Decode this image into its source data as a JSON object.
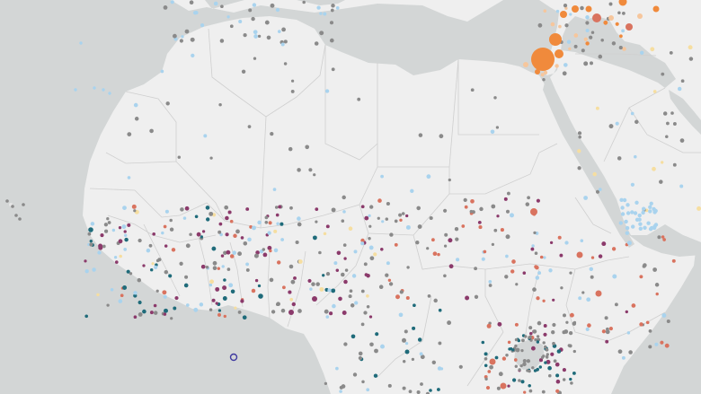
{
  "map": {
    "background": "#d3d6d6",
    "land_color": "#efefef",
    "border_color": "#cfcfcf",
    "categories": [
      {
        "key": "grey",
        "color": "#8a8a8a",
        "size_class": "small"
      },
      {
        "key": "lightblue",
        "color": "#a9d3ee",
        "size_class": "small"
      },
      {
        "key": "teal",
        "color": "#1f6b7a",
        "size_class": "small"
      },
      {
        "key": "purple",
        "color": "#8b3a6b",
        "size_class": "small"
      },
      {
        "key": "coral",
        "color": "#d9735f",
        "size_class": "small"
      },
      {
        "key": "orange",
        "color": "#f08a3c",
        "size_class": "large"
      },
      {
        "key": "peach",
        "color": "#f6c69c",
        "size_class": "small"
      },
      {
        "key": "yellow",
        "color": "#f6dea0",
        "size_class": "small"
      }
    ],
    "highlighted_marker": {
      "key": "ring",
      "color": "#3f3aa0"
    }
  }
}
